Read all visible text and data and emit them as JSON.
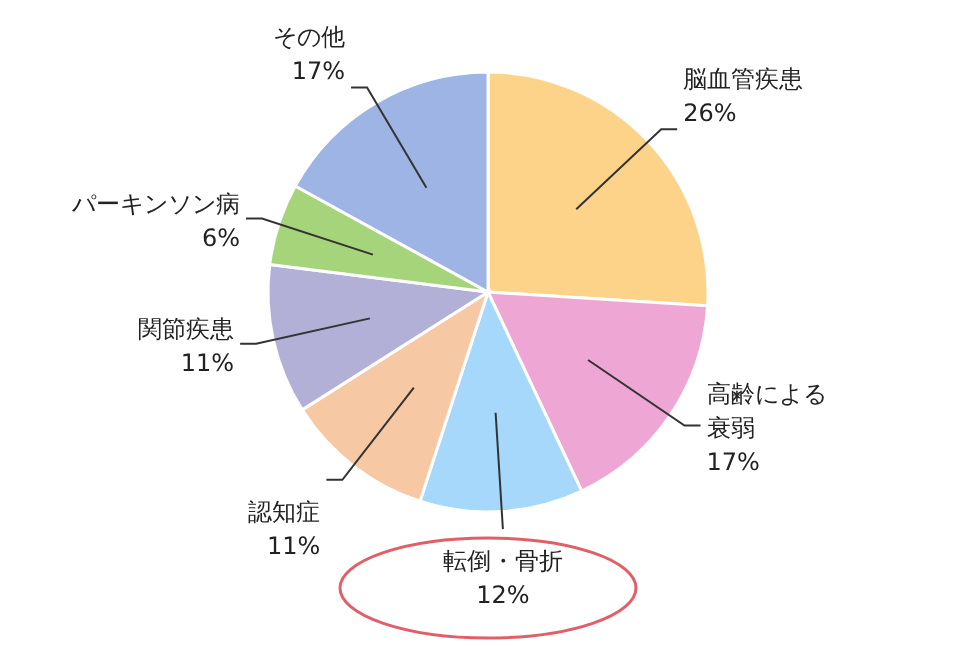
{
  "chart_data": {
    "type": "pie",
    "categories": [
      "脳血管疾患",
      "高齢による衰弱",
      "転倒・骨折",
      "認知症",
      "関節疾患",
      "パーキンソン病",
      "その他"
    ],
    "values": [
      26,
      17,
      12,
      11,
      11,
      6,
      17
    ],
    "value_labels": [
      "26%",
      "17%",
      "12%",
      "11%",
      "11%",
      "6%",
      "17%"
    ],
    "colors": [
      "#fdd38a",
      "#eea6d4",
      "#a6d8fb",
      "#f7c8a4",
      "#b3b0d8",
      "#a6d47a",
      "#9db4e4"
    ],
    "legend": false
  }
}
